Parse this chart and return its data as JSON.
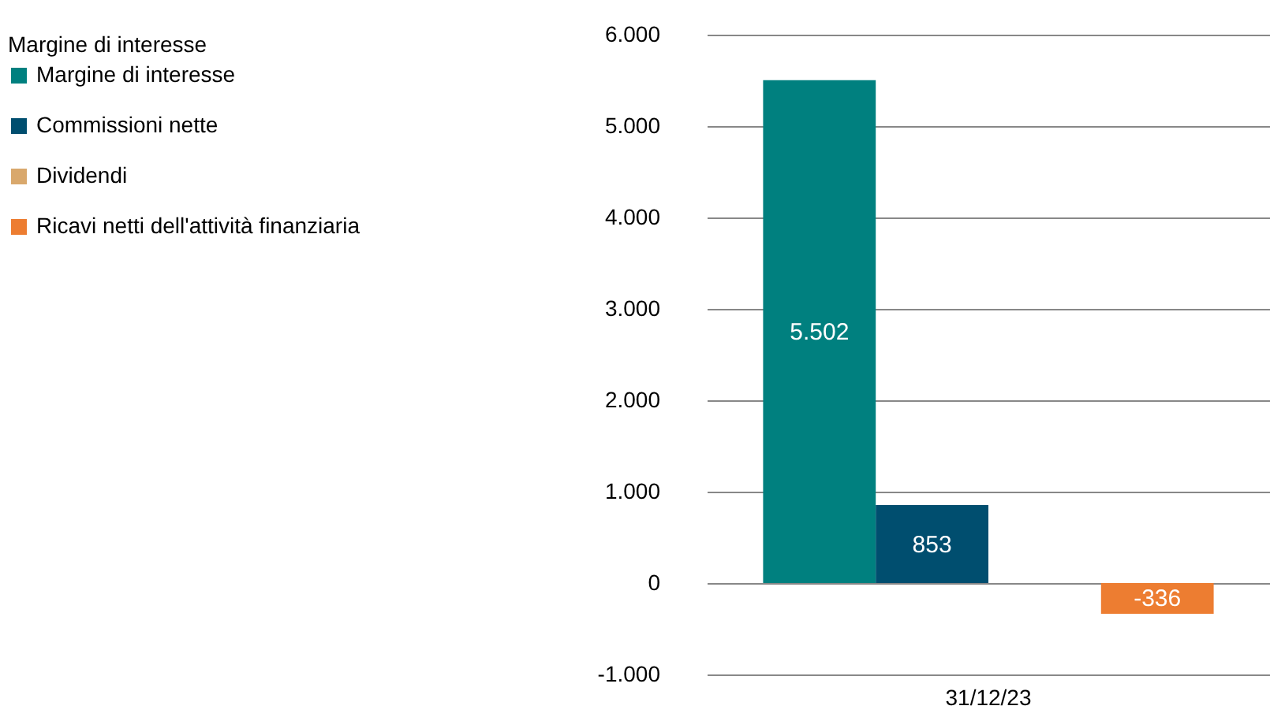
{
  "chart_data": {
    "type": "bar",
    "legend_title": "Margine di interesse",
    "categories": [
      "31/12/23"
    ],
    "series": [
      {
        "name": "Margine di interesse",
        "color": "#00807f",
        "values": [
          5502
        ],
        "value_labels": [
          "5.502"
        ]
      },
      {
        "name": "Commissioni nette",
        "color": "#004e6f",
        "values": [
          853
        ],
        "value_labels": [
          "853"
        ]
      },
      {
        "name": "Dividendi",
        "color": "#d9a86c",
        "values": [
          null
        ],
        "value_labels": [
          null
        ]
      },
      {
        "name": "Ricavi netti dell'attività finanziaria",
        "color": "#ed7d31",
        "values": [
          -336
        ],
        "value_labels": [
          "-336"
        ]
      }
    ],
    "ylim": [
      -1000,
      6000
    ],
    "yticks": [
      {
        "value": -1000,
        "label": "-1.000"
      },
      {
        "value": 0,
        "label": "0"
      },
      {
        "value": 1000,
        "label": "1.000"
      },
      {
        "value": 2000,
        "label": "2.000"
      },
      {
        "value": 3000,
        "label": "3.000"
      },
      {
        "value": 4000,
        "label": "4.000"
      },
      {
        "value": 5000,
        "label": "5.000"
      },
      {
        "value": 6000,
        "label": "6.000"
      }
    ],
    "grid": "y",
    "legend": "left"
  }
}
